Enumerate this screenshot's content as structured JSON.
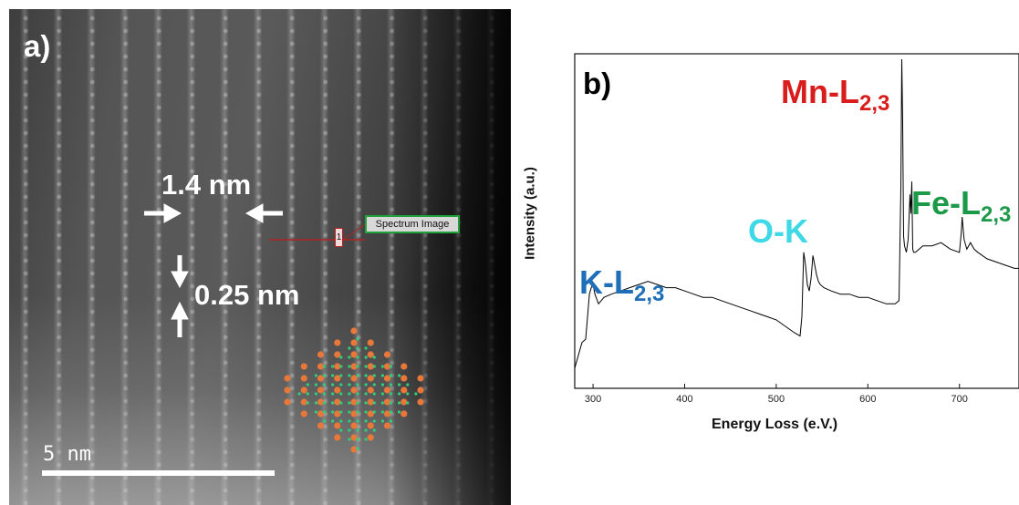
{
  "panel_a": {
    "label": "a)",
    "width_measure": "1.4 nm",
    "height_measure": "0.25 nm",
    "spectrum_tag": "Spectrum Image",
    "marker": "1",
    "scale_label": "5  nm",
    "colors": {
      "atom_large": "#e8783a",
      "atom_small": "#2ecf7a",
      "tag_border": "#1fa23a",
      "line": "#b22222"
    }
  },
  "panel_b": {
    "label": "b)",
    "peaks": {
      "mn": {
        "text": "Mn-L",
        "sub": "2,3",
        "color": "#d91c1c"
      },
      "fe": {
        "text": "Fe-L",
        "sub": "2,3",
        "color": "#1c9a4a"
      },
      "ok": {
        "text": "O-K",
        "sub": "",
        "color": "#3fd8e6"
      },
      "k": {
        "text": "K-L",
        "sub": "2,3",
        "color": "#1f6fb8"
      }
    },
    "chart_data": {
      "type": "line",
      "xlabel": "Energy Loss (e.V.)",
      "ylabel": "Intensity (a.u.)",
      "xlim": [
        280,
        765
      ],
      "ylim": [
        0,
        100
      ],
      "xticks": [
        300,
        400,
        500,
        600,
        700
      ],
      "grid": false,
      "series": [
        {
          "x": [
            280,
            283,
            288,
            292,
            296,
            298,
            300,
            302,
            306,
            312,
            320,
            330,
            340,
            350,
            360,
            370,
            380,
            390,
            400,
            410,
            420,
            430,
            440,
            450,
            460,
            470,
            480,
            490,
            500,
            510,
            520,
            526,
            528,
            530,
            532,
            534,
            536,
            538,
            540,
            542,
            544,
            546,
            548,
            552,
            560,
            570,
            580,
            590,
            600,
            610,
            620,
            630,
            634,
            636,
            637,
            638,
            639,
            640,
            641,
            642,
            644,
            646,
            647,
            648,
            649,
            650,
            652,
            656,
            660,
            670,
            680,
            690,
            700,
            702,
            703,
            705,
            708,
            712,
            716,
            720,
            725,
            730,
            740,
            750,
            760,
            765
          ],
          "y": [
            4,
            7,
            12,
            13,
            27,
            29,
            30,
            27,
            24,
            26,
            27,
            28,
            29,
            30,
            31,
            30,
            29,
            29,
            28,
            27,
            26,
            26,
            25,
            24,
            23,
            22,
            21,
            20,
            19,
            17,
            15,
            14,
            20,
            40,
            36,
            30,
            28,
            32,
            39,
            36,
            33,
            31,
            30,
            29,
            28,
            27,
            27,
            26,
            26,
            25,
            24,
            24,
            25,
            60,
            100,
            80,
            45,
            42,
            41,
            40,
            44,
            58,
            52,
            62,
            41,
            40,
            40,
            41,
            42,
            42,
            43,
            41,
            40,
            46,
            51,
            44,
            41,
            43,
            41,
            40,
            39,
            38,
            37,
            36,
            35,
            35
          ]
        }
      ]
    }
  }
}
